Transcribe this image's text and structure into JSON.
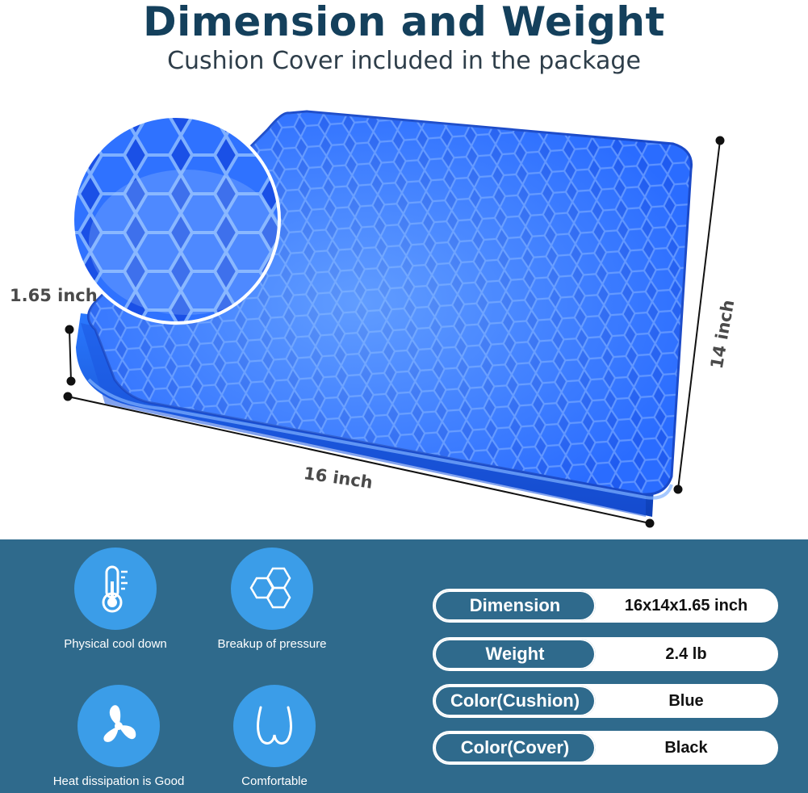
{
  "header": {
    "title": "Dimension and Weight",
    "subtitle": "Cushion Cover included in the package"
  },
  "dimensions": {
    "height_label": "1.65 inch",
    "width_label": "16 inch",
    "depth_label": "14 inch"
  },
  "features": [
    {
      "icon": "thermometer-icon",
      "label": "Physical cool down"
    },
    {
      "icon": "honeycomb-icon",
      "label": "Breakup of pressure"
    },
    {
      "icon": "fan-icon",
      "label": "Heat dissipation is Good"
    },
    {
      "icon": "body-shape-icon",
      "label": "Comfortable"
    }
  ],
  "specs": [
    {
      "key": "Dimension",
      "value": "16x14x1.65 inch"
    },
    {
      "key": "Weight",
      "value": "2.4 lb"
    },
    {
      "key": "Color(Cushion)",
      "value": "Blue"
    },
    {
      "key": "Color(Cover)",
      "value": "Black"
    }
  ],
  "colors": {
    "title": "#14405c",
    "cushion_blue": "#1f5bf0",
    "panel_background": "#2f6a8c",
    "icon_circle": "#3b9de8"
  }
}
